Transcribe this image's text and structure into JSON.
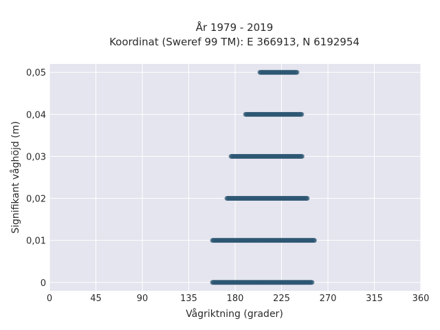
{
  "chart_data": {
    "type": "scatter",
    "title": "År 1979 - 2019",
    "subtitle": "Koordinat (Sweref 99 TM): E 366913, N 6192954",
    "xlabel": "Vågriktning (grader)",
    "ylabel": "Signifikant våghöjd (m)",
    "xlim": [
      0,
      360
    ],
    "ylim": [
      -0.002,
      0.052
    ],
    "x_ticks": [
      {
        "value": 0,
        "label": "0"
      },
      {
        "value": 45,
        "label": "45"
      },
      {
        "value": 90,
        "label": "90"
      },
      {
        "value": 135,
        "label": "135"
      },
      {
        "value": 180,
        "label": "180"
      },
      {
        "value": 225,
        "label": "225"
      },
      {
        "value": 270,
        "label": "270"
      },
      {
        "value": 315,
        "label": "315"
      },
      {
        "value": 360,
        "label": "360"
      }
    ],
    "y_ticks": [
      {
        "value": 0,
        "label": "0"
      },
      {
        "value": 0.01,
        "label": "0,01"
      },
      {
        "value": 0.02,
        "label": "0,02"
      },
      {
        "value": 0.03,
        "label": "0,03"
      },
      {
        "value": 0.04,
        "label": "0,04"
      },
      {
        "value": 0.05,
        "label": "0,05"
      }
    ],
    "grid": true,
    "series": [
      {
        "color": "#2e5872",
        "bands": [
          {
            "y": 0.0,
            "x_min": 158,
            "x_max": 255
          },
          {
            "y": 0.01,
            "x_min": 158,
            "x_max": 257
          },
          {
            "y": 0.02,
            "x_min": 172,
            "x_max": 250
          },
          {
            "y": 0.03,
            "x_min": 176,
            "x_max": 245
          },
          {
            "y": 0.04,
            "x_min": 190,
            "x_max": 245
          },
          {
            "y": 0.05,
            "x_min": 204,
            "x_max": 240
          }
        ]
      }
    ]
  }
}
